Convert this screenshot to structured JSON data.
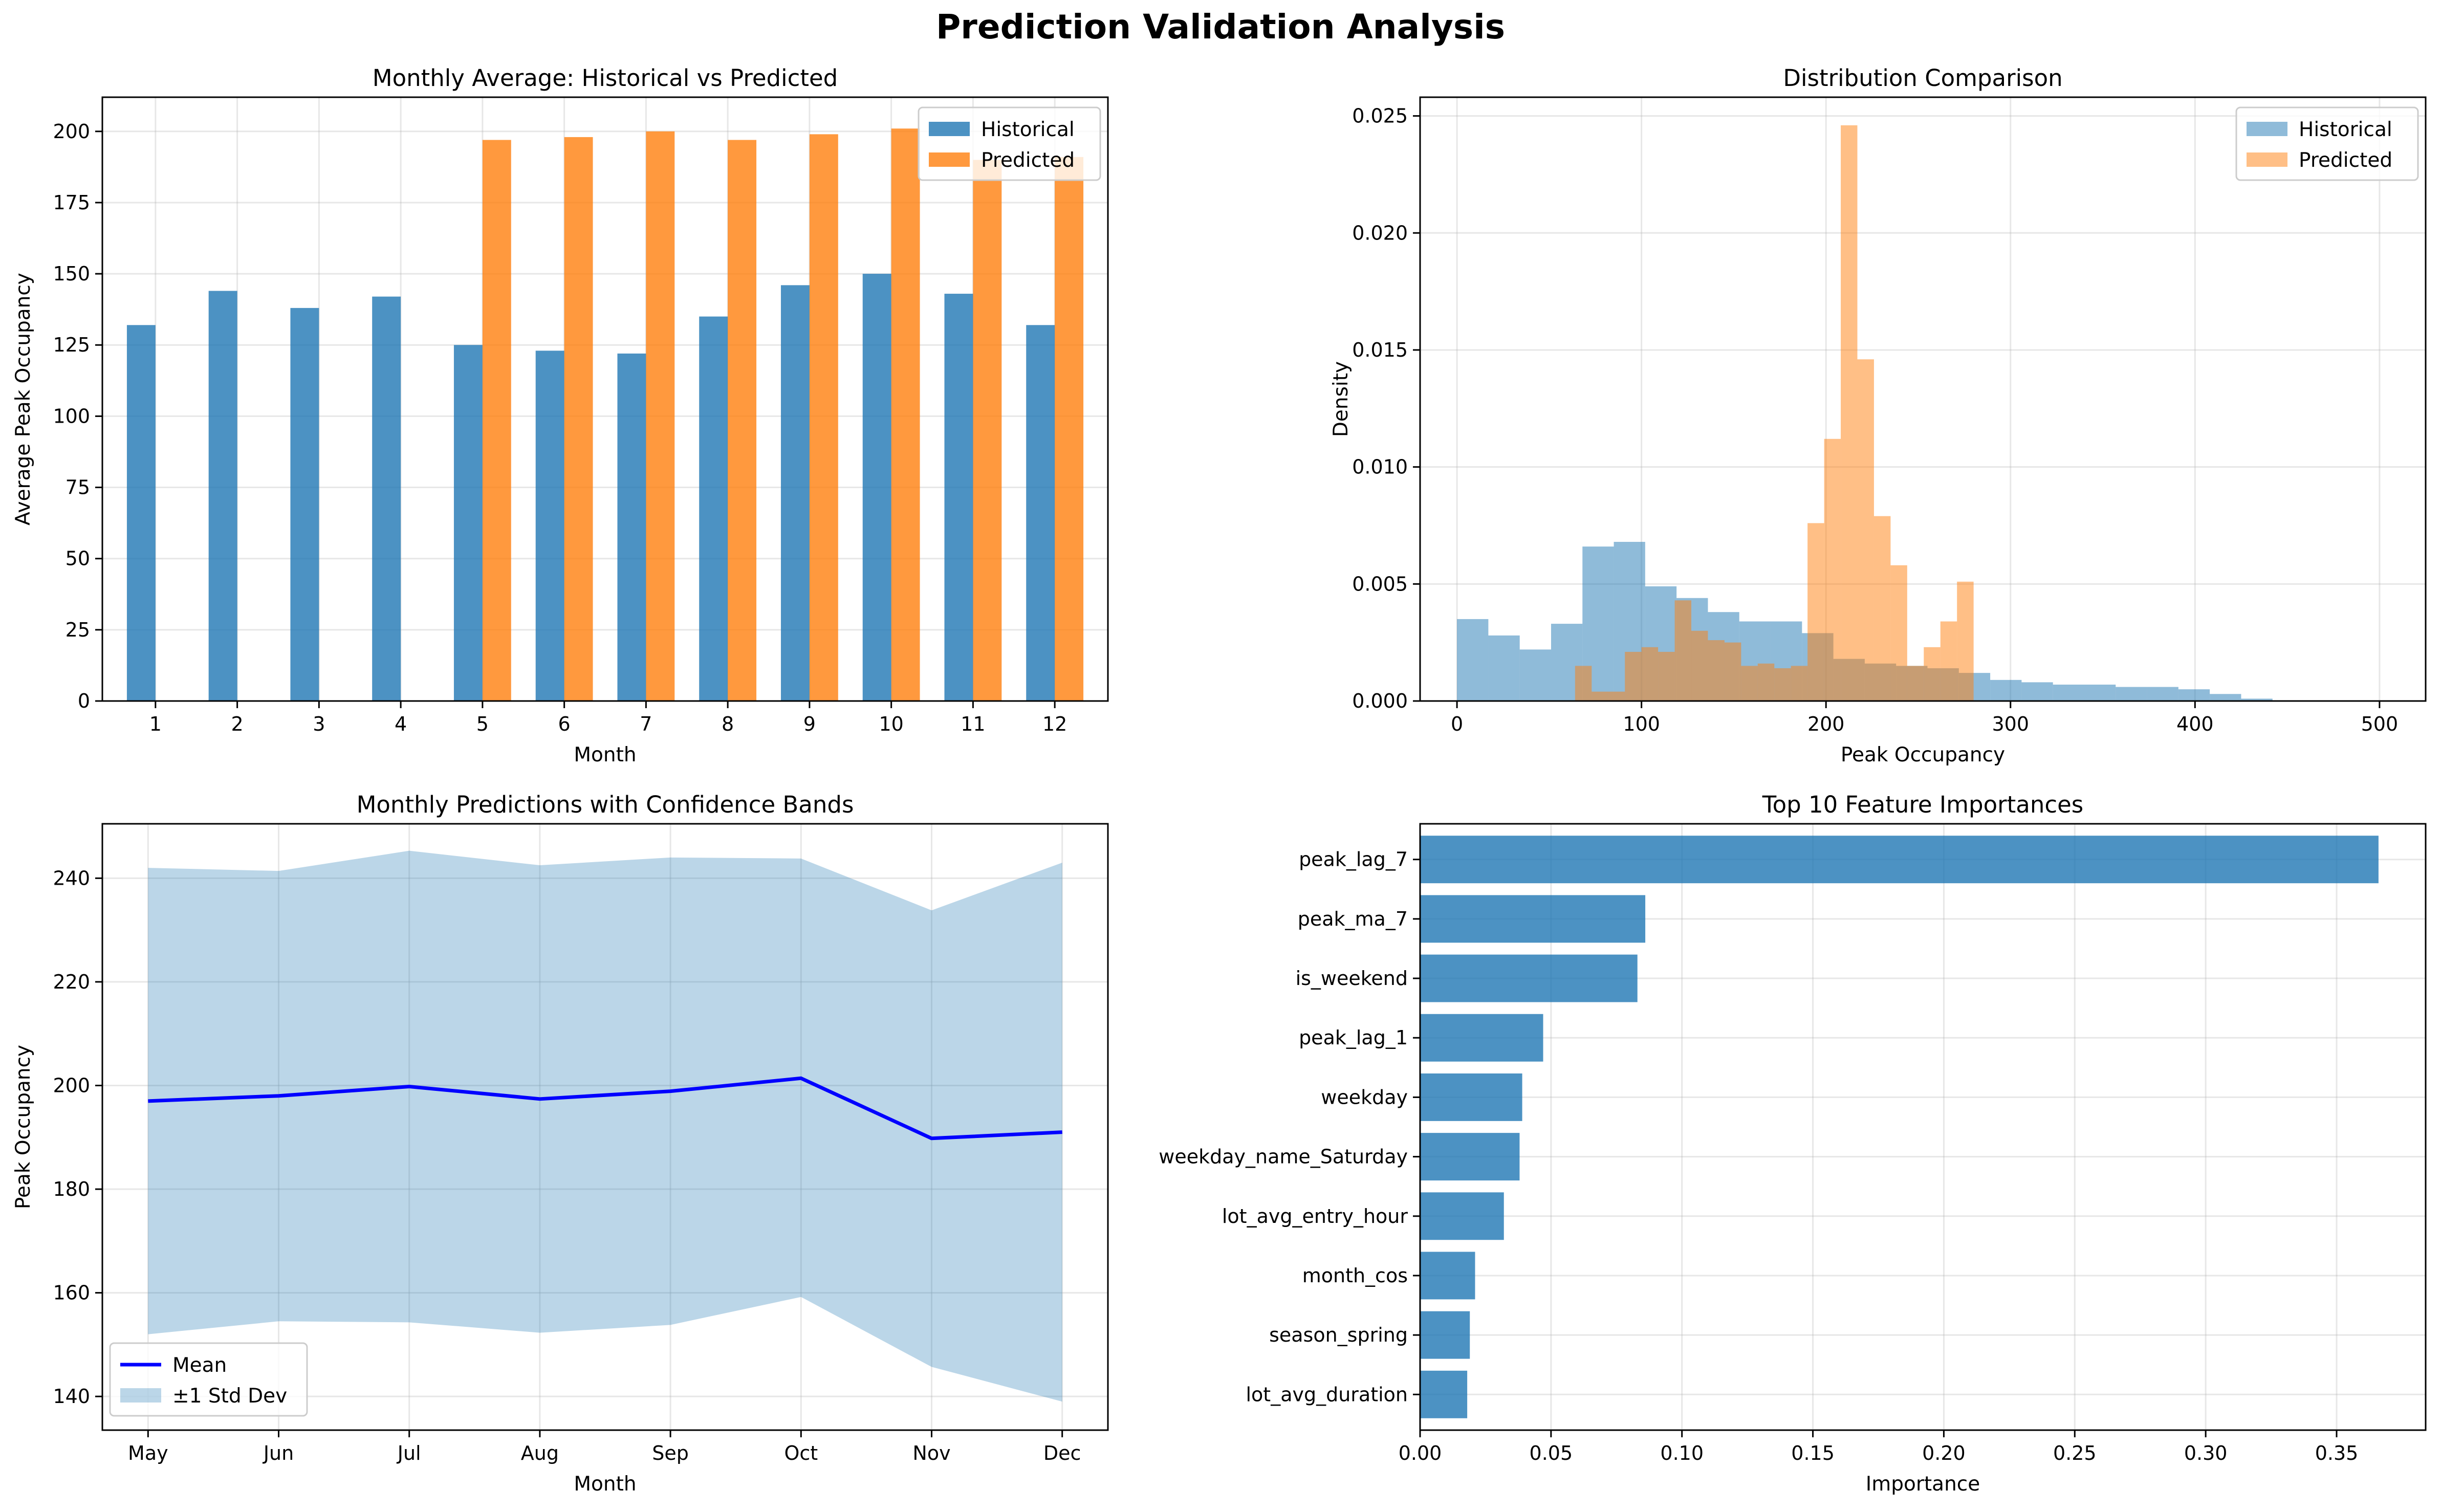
{
  "figure": {
    "title": "Prediction Validation Analysis"
  },
  "chart_data": [
    {
      "type": "bar",
      "title": "Monthly Average: Historical vs Predicted",
      "xlabel": "Month",
      "ylabel": "Average Peak Occupancy",
      "categories": [
        "1",
        "2",
        "3",
        "4",
        "5",
        "6",
        "7",
        "8",
        "9",
        "10",
        "11",
        "12"
      ],
      "series": [
        {
          "name": "Historical",
          "color": "#1f77b4",
          "values": [
            132,
            144,
            138,
            142,
            125,
            123,
            122,
            135,
            146,
            150,
            143,
            132
          ]
        },
        {
          "name": "Predicted",
          "color": "#ff7f0e",
          "values": [
            null,
            null,
            null,
            null,
            197,
            198,
            200,
            197,
            199,
            201,
            190,
            191
          ]
        }
      ],
      "ylim": [
        0,
        212
      ],
      "yticks": [
        0,
        25,
        50,
        75,
        100,
        125,
        150,
        175,
        200
      ],
      "grid": true,
      "legend": "top-right"
    },
    {
      "type": "histogram",
      "title": "Distribution Comparison",
      "xlabel": "Peak Occupancy",
      "ylabel": "Density",
      "xlim": [
        -20,
        525
      ],
      "ylim": [
        0,
        0.0258
      ],
      "xticks": [
        0,
        100,
        200,
        300,
        400,
        500
      ],
      "yticks": [
        "0.000",
        "0.005",
        "0.010",
        "0.015",
        "0.020",
        "0.025"
      ],
      "grid": true,
      "legend": "top-right",
      "series": [
        {
          "name": "Historical",
          "color": "#1f77b4",
          "alpha": 0.5,
          "bins": [
            [
              0,
              17,
              0.0035
            ],
            [
              17,
              34,
              0.0028
            ],
            [
              34,
              51,
              0.0022
            ],
            [
              51,
              68,
              0.0033
            ],
            [
              68,
              85,
              0.0066
            ],
            [
              85,
              102,
              0.0068
            ],
            [
              102,
              119,
              0.0049
            ],
            [
              119,
              136,
              0.0044
            ],
            [
              136,
              153,
              0.0038
            ],
            [
              153,
              170,
              0.0034
            ],
            [
              170,
              187,
              0.0034
            ],
            [
              187,
              204,
              0.0029
            ],
            [
              204,
              221,
              0.0018
            ],
            [
              221,
              238,
              0.0016
            ],
            [
              238,
              255,
              0.0015
            ],
            [
              255,
              272,
              0.0014
            ],
            [
              272,
              289,
              0.0012
            ],
            [
              289,
              306,
              0.0009
            ],
            [
              306,
              323,
              0.0008
            ],
            [
              323,
              340,
              0.0007
            ],
            [
              340,
              357,
              0.0007
            ],
            [
              357,
              374,
              0.0006
            ],
            [
              374,
              391,
              0.0006
            ],
            [
              391,
              408,
              0.0005
            ],
            [
              408,
              425,
              0.0003
            ],
            [
              425,
              442,
              0.0001
            ]
          ]
        },
        {
          "name": "Predicted",
          "color": "#ff7f0e",
          "alpha": 0.5,
          "bins": [
            [
              64,
              73,
              0.0015
            ],
            [
              73,
              82,
              0.0004
            ],
            [
              82,
              91,
              0.0004
            ],
            [
              91,
              100,
              0.0021
            ],
            [
              100,
              109,
              0.0023
            ],
            [
              109,
              118,
              0.0021
            ],
            [
              118,
              127,
              0.0043
            ],
            [
              127,
              136,
              0.003
            ],
            [
              136,
              145,
              0.0026
            ],
            [
              145,
              154,
              0.0025
            ],
            [
              154,
              163,
              0.0015
            ],
            [
              163,
              172,
              0.0016
            ],
            [
              172,
              181,
              0.0014
            ],
            [
              181,
              190,
              0.0015
            ],
            [
              190,
              199,
              0.0076
            ],
            [
              199,
              208,
              0.0112
            ],
            [
              208,
              217,
              0.0246
            ],
            [
              217,
              226,
              0.0146
            ],
            [
              226,
              235,
              0.0079
            ],
            [
              235,
              244,
              0.0058
            ],
            [
              244,
              253,
              0.0015
            ],
            [
              253,
              262,
              0.0023
            ],
            [
              262,
              271,
              0.0034
            ],
            [
              271,
              280,
              0.0051
            ]
          ]
        }
      ]
    },
    {
      "type": "line",
      "title": "Monthly Predictions with Confidence Bands",
      "xlabel": "Month",
      "ylabel": "Peak Occupancy",
      "categories": [
        "May",
        "Jun",
        "Jul",
        "Aug",
        "Sep",
        "Oct",
        "Nov",
        "Dec"
      ],
      "series": [
        {
          "name": "Mean",
          "color": "#0000ff",
          "values": [
            197,
            198,
            199.8,
            197.4,
            198.9,
            201.4,
            189.8,
            191
          ]
        }
      ],
      "band": {
        "name": "±1 Std Dev",
        "color": "#1f77b4",
        "alpha": 0.3,
        "lower": [
          152,
          154.5,
          154.3,
          152.3,
          153.8,
          159.2,
          145.7,
          139
        ],
        "upper": [
          242,
          241.4,
          245.3,
          242.5,
          244,
          243.8,
          233.8,
          243
        ]
      },
      "ylim": [
        133.5,
        250.5
      ],
      "yticks": [
        140,
        160,
        180,
        200,
        220,
        240
      ],
      "grid": true,
      "legend": "bottom-left"
    },
    {
      "type": "bar",
      "orientation": "horizontal",
      "title": "Top 10 Feature Importances",
      "xlabel": "Importance",
      "ylabel": "",
      "color": "#1f77b4",
      "categories": [
        "peak_lag_7",
        "peak_ma_7",
        "is_weekend",
        "peak_lag_1",
        "weekday",
        "weekday_name_Saturday",
        "lot_avg_entry_hour",
        "month_cos",
        "season_spring",
        "lot_avg_duration"
      ],
      "values": [
        0.366,
        0.086,
        0.083,
        0.047,
        0.039,
        0.038,
        0.032,
        0.021,
        0.019,
        0.018
      ],
      "xlim": [
        0,
        0.384
      ],
      "xticks": [
        "0.00",
        "0.05",
        "0.10",
        "0.15",
        "0.20",
        "0.25",
        "0.30",
        "0.35"
      ],
      "grid": true
    }
  ]
}
